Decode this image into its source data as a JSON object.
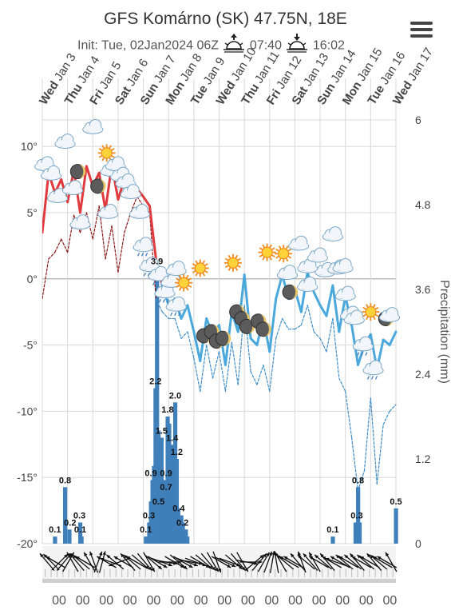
{
  "header": {
    "title": "GFS Komárno (SK) 47.75N, 18E",
    "init": "Init: Tue, 02Jan2024 06Z",
    "sunrise": "07:40",
    "sunset": "16:02",
    "sunrise_icon": "sunrise-icon",
    "sunset_icon": "sunset-icon",
    "menu_icon": "hamburger-menu-icon"
  },
  "chart_data": {
    "type": "line",
    "days": [
      {
        "dow": "Wed",
        "date": "Jan 3"
      },
      {
        "dow": "Thu",
        "date": "Jan 4"
      },
      {
        "dow": "Fri",
        "date": "Jan 5"
      },
      {
        "dow": "Sat",
        "date": "Jan 6"
      },
      {
        "dow": "Sun",
        "date": "Jan 7"
      },
      {
        "dow": "Mon",
        "date": "Jan 8"
      },
      {
        "dow": "Tue",
        "date": "Jan 9"
      },
      {
        "dow": "Wed",
        "date": "Jan 10"
      },
      {
        "dow": "Thu",
        "date": "Jan 11"
      },
      {
        "dow": "Fri",
        "date": "Jan 12"
      },
      {
        "dow": "Sat",
        "date": "Jan 13"
      },
      {
        "dow": "Sun",
        "date": "Jan 14"
      },
      {
        "dow": "Mon",
        "date": "Jan 15"
      },
      {
        "dow": "Tue",
        "date": "Jan 16"
      },
      {
        "dow": "Wed",
        "date": "Jan 17"
      }
    ],
    "temp_axis": {
      "ticks": [
        "10°",
        "5°",
        "0°",
        "-5°",
        "-10°",
        "-15°",
        "-20°"
      ],
      "values": [
        10,
        5,
        0,
        -5,
        -10,
        -15,
        -20
      ],
      "ylim": [
        -20,
        12
      ]
    },
    "precip_axis": {
      "label": "Precipitation (mm)",
      "ticks": [
        "6",
        "4.8",
        "3.6",
        "2.4",
        "1.2",
        "0"
      ],
      "values": [
        6,
        4.8,
        3.6,
        2.4,
        1.2,
        0
      ],
      "ylim": [
        0,
        6
      ]
    },
    "bottom_labels": [
      "00",
      "00",
      "00",
      "00",
      "00",
      "00",
      "00",
      "00",
      "00",
      "00",
      "00",
      "00",
      "00",
      "00",
      "00"
    ],
    "x_range_days": [
      0,
      14
    ],
    "series": [
      {
        "kind": "temperature",
        "x": [
          0.0,
          0.25,
          0.5,
          0.75,
          1.0,
          1.25,
          1.5,
          1.75,
          2.0,
          2.25,
          2.5,
          2.75,
          3.0,
          3.25,
          3.5,
          3.75,
          4.0,
          4.25,
          4.5,
          4.75,
          5.0,
          5.25,
          5.5,
          5.75,
          6.0,
          6.25,
          6.5,
          6.75,
          7.0,
          7.25,
          7.5,
          7.75,
          8.0,
          8.25,
          8.5,
          8.75,
          9.0,
          9.25,
          9.5,
          9.75,
          10.0,
          10.25,
          10.5,
          10.75,
          11.0,
          11.25,
          11.5,
          11.75,
          12.0,
          12.25,
          12.5,
          12.75,
          13.0,
          13.25,
          13.5,
          13.75,
          14.0
        ],
        "y": [
          3.5,
          8.0,
          6.5,
          7.5,
          5.8,
          8.2,
          5.0,
          8.5,
          7.0,
          8.0,
          5.2,
          8.6,
          6.0,
          7.5,
          7.0,
          6.8,
          6.2,
          5.5,
          1.5,
          -0.5,
          -2.0,
          -1.5,
          -3.0,
          -2.0,
          -4.0,
          -6.2,
          -3.0,
          -4.2,
          -3.5,
          -6.5,
          -2.5,
          -4.0,
          0.3,
          -4.5,
          -5.0,
          -3.0,
          -5.5,
          -1.5,
          0.3,
          -1.5,
          -0.8,
          -2.5,
          0.5,
          -1.0,
          -2.0,
          -2.8,
          -0.5,
          -4.0,
          -1.3,
          -3.5,
          -6.5,
          -5.0,
          -4.2,
          -6.8,
          -4.6,
          -5.0,
          -4.0
        ],
        "colors_by_sign": {
          "positive": "#e03a3e",
          "negative": "#4aa8dc"
        }
      },
      {
        "kind": "dewpoint",
        "x": [
          0.0,
          0.25,
          0.5,
          0.75,
          1.0,
          1.25,
          1.5,
          1.75,
          2.0,
          2.25,
          2.5,
          2.75,
          3.0,
          3.25,
          3.5,
          3.75,
          4.0,
          4.25,
          4.5,
          4.75,
          5.0,
          5.25,
          5.5,
          5.75,
          6.0,
          6.25,
          6.5,
          6.75,
          7.0,
          7.25,
          7.5,
          7.75,
          8.0,
          8.25,
          8.5,
          8.75,
          9.0,
          9.25,
          9.5,
          9.75,
          10.0,
          10.25,
          10.5,
          10.75,
          11.0,
          11.25,
          11.5,
          11.75,
          12.0,
          12.25,
          12.5,
          12.75,
          13.0,
          13.25,
          13.5,
          13.75,
          14.0
        ],
        "y": [
          -1.5,
          1.5,
          2.0,
          3.0,
          2.0,
          4.8,
          3.5,
          5.0,
          3.0,
          5.5,
          1.5,
          4.0,
          0.5,
          3.5,
          5.0,
          6.2,
          5.5,
          5.0,
          -1.5,
          -2.5,
          -3.0,
          -3.0,
          -4.5,
          -4.0,
          -6.0,
          -8.5,
          -5.0,
          -7.5,
          -5.5,
          -8.5,
          -4.8,
          -8.0,
          -2.0,
          -7.0,
          -8.0,
          -6.5,
          -8.5,
          -4.5,
          -3.0,
          -3.8,
          -3.8,
          -3.5,
          -2.0,
          -4.0,
          -4.5,
          -5.5,
          -3.0,
          -7.5,
          -8.5,
          -12.0,
          -16.0,
          -14.5,
          -9.0,
          -15.5,
          -11.0,
          -10.0,
          -9.5
        ],
        "colors_by_sign": {
          "positive": "#8b1a1a",
          "negative": "#3f8ec9"
        }
      },
      {
        "kind": "precipitation",
        "x": [
          0.5,
          0.9,
          1.07,
          1.5,
          1.55,
          4.1,
          4.17,
          4.23,
          4.3,
          4.36,
          4.42,
          4.48,
          4.54,
          4.6,
          4.66,
          4.72,
          4.78,
          4.84,
          4.9,
          4.96,
          5.02,
          5.08,
          5.14,
          5.2,
          5.26,
          5.32,
          5.38,
          5.44,
          5.5,
          5.56,
          5.62,
          5.68,
          5.74,
          11.5,
          12.4,
          12.5,
          12.56,
          14.0
        ],
        "y": [
          0.1,
          0.8,
          0.2,
          0.3,
          0.1,
          0.1,
          0.1,
          0.3,
          0.6,
          0.9,
          1.1,
          2.2,
          3.9,
          1.6,
          1.3,
          1.5,
          0.5,
          0.9,
          0.7,
          1.8,
          1.7,
          0.9,
          1.4,
          1.3,
          2.0,
          1.2,
          0.5,
          0.4,
          0.4,
          0.3,
          0.2,
          0.2,
          0.1,
          0.1,
          0.3,
          0.8,
          0.3,
          0.5
        ]
      }
    ],
    "precip_labels": [
      {
        "x": 0.5,
        "y": 0.1,
        "text": "0.1"
      },
      {
        "x": 0.9,
        "y": 0.8,
        "text": "0.8"
      },
      {
        "x": 1.1,
        "y": 0.2,
        "text": "0.2"
      },
      {
        "x": 1.47,
        "y": 0.3,
        "text": "0.3"
      },
      {
        "x": 1.5,
        "y": 0.1,
        "text": "0.1"
      },
      {
        "x": 4.1,
        "y": 0.1,
        "text": "0.1"
      },
      {
        "x": 4.22,
        "y": 0.3,
        "text": "0.3"
      },
      {
        "x": 4.3,
        "y": 0.9,
        "text": "0.9"
      },
      {
        "x": 4.48,
        "y": 2.2,
        "text": "2.2"
      },
      {
        "x": 4.54,
        "y": 3.9,
        "text": "3.9"
      },
      {
        "x": 4.6,
        "y": 0.5,
        "text": "0.5"
      },
      {
        "x": 4.72,
        "y": 1.5,
        "text": "1.5"
      },
      {
        "x": 4.9,
        "y": 0.7,
        "text": "0.7"
      },
      {
        "x": 4.9,
        "y": 0.9,
        "text": "0.9"
      },
      {
        "x": 4.96,
        "y": 1.8,
        "text": "1.8"
      },
      {
        "x": 5.14,
        "y": 1.4,
        "text": "1.4"
      },
      {
        "x": 5.26,
        "y": 2.0,
        "text": "2.0"
      },
      {
        "x": 5.32,
        "y": 1.2,
        "text": "1.2"
      },
      {
        "x": 5.4,
        "y": 0.4,
        "text": "0.4"
      },
      {
        "x": 5.55,
        "y": 0.2,
        "text": "0.2"
      },
      {
        "x": 11.5,
        "y": 0.1,
        "text": "0.1"
      },
      {
        "x": 12.45,
        "y": 0.3,
        "text": "0.3"
      },
      {
        "x": 12.5,
        "y": 0.8,
        "text": "0.8"
      },
      {
        "x": 14.0,
        "y": 0.5,
        "text": "0.5"
      }
    ],
    "weather_icons": [
      {
        "x": 0.1,
        "temp": 8.6,
        "type": "cloud"
      },
      {
        "x": 0.35,
        "temp": 7.9,
        "type": "cloud"
      },
      {
        "x": 0.6,
        "temp": 6.2,
        "type": "cloud"
      },
      {
        "x": 0.9,
        "temp": 10.3,
        "type": "cloud"
      },
      {
        "x": 1.4,
        "temp": 8.1,
        "type": "moon"
      },
      {
        "x": 1.2,
        "temp": 6.8,
        "type": "cloud"
      },
      {
        "x": 1.5,
        "temp": 4.2,
        "type": "cloud"
      },
      {
        "x": 2.0,
        "temp": 11.4,
        "type": "cloud"
      },
      {
        "x": 2.2,
        "temp": 7.0,
        "type": "moon"
      },
      {
        "x": 2.55,
        "temp": 9.5,
        "type": "sun"
      },
      {
        "x": 2.7,
        "temp": 8.2,
        "type": "cloud"
      },
      {
        "x": 2.9,
        "temp": 8.6,
        "type": "cloud"
      },
      {
        "x": 3.1,
        "temp": 7.8,
        "type": "cloud"
      },
      {
        "x": 3.3,
        "temp": 7.3,
        "type": "cloud"
      },
      {
        "x": 3.5,
        "temp": 6.5,
        "type": "cloud"
      },
      {
        "x": 2.6,
        "temp": 5.0,
        "type": "cloud"
      },
      {
        "x": 3.85,
        "temp": 5.0,
        "type": "cloud"
      },
      {
        "x": 4.0,
        "temp": 2.5,
        "type": "rain"
      },
      {
        "x": 4.25,
        "temp": 1.0,
        "type": "rain"
      },
      {
        "x": 4.6,
        "temp": 0.3,
        "type": "rain"
      },
      {
        "x": 4.85,
        "temp": -1.0,
        "type": "rain"
      },
      {
        "x": 5.1,
        "temp": -0.2,
        "type": "cloud"
      },
      {
        "x": 5.3,
        "temp": 0.7,
        "type": "cloud"
      },
      {
        "x": 5.3,
        "temp": -2.0,
        "type": "rain"
      },
      {
        "x": 5.6,
        "temp": -0.3,
        "type": "sun"
      },
      {
        "x": 6.25,
        "temp": 0.8,
        "type": "sun"
      },
      {
        "x": 6.4,
        "temp": -4.3,
        "type": "moon"
      },
      {
        "x": 6.7,
        "temp": -4.0,
        "type": "moon"
      },
      {
        "x": 6.9,
        "temp": -4.7,
        "type": "moon"
      },
      {
        "x": 7.15,
        "temp": -4.5,
        "type": "moon"
      },
      {
        "x": 7.55,
        "temp": 1.2,
        "type": "sun"
      },
      {
        "x": 7.7,
        "temp": -2.5,
        "type": "moon"
      },
      {
        "x": 7.9,
        "temp": -3.0,
        "type": "moon"
      },
      {
        "x": 8.1,
        "temp": -3.6,
        "type": "moon"
      },
      {
        "x": 8.55,
        "temp": -3.2,
        "type": "moon"
      },
      {
        "x": 8.75,
        "temp": -3.8,
        "type": "moon"
      },
      {
        "x": 8.9,
        "temp": 2.0,
        "type": "sun"
      },
      {
        "x": 9.55,
        "temp": 1.9,
        "type": "sun"
      },
      {
        "x": 9.7,
        "temp": 0.4,
        "type": "cloud"
      },
      {
        "x": 9.8,
        "temp": -1.0,
        "type": "moon"
      },
      {
        "x": 10.15,
        "temp": 2.6,
        "type": "cloud"
      },
      {
        "x": 10.5,
        "temp": 0.9,
        "type": "cloud"
      },
      {
        "x": 10.5,
        "temp": -0.5,
        "type": "cloud"
      },
      {
        "x": 10.9,
        "temp": 1.7,
        "type": "cloud"
      },
      {
        "x": 11.2,
        "temp": 0.6,
        "type": "cloud"
      },
      {
        "x": 11.5,
        "temp": 3.3,
        "type": "cloud"
      },
      {
        "x": 11.7,
        "temp": 0.8,
        "type": "cloud"
      },
      {
        "x": 12.0,
        "temp": -1.2,
        "type": "cloud"
      },
      {
        "x": 11.9,
        "temp": 0.9,
        "type": "cloud"
      },
      {
        "x": 12.2,
        "temp": -2.7,
        "type": "cloud"
      },
      {
        "x": 12.35,
        "temp": -3.0,
        "type": "cloud"
      },
      {
        "x": 12.7,
        "temp": -5.0,
        "type": "rain"
      },
      {
        "x": 13.0,
        "temp": -2.5,
        "type": "sun"
      },
      {
        "x": 13.1,
        "temp": -6.8,
        "type": "rain"
      },
      {
        "x": 13.6,
        "temp": -3.0,
        "type": "moon"
      },
      {
        "x": 13.75,
        "temp": -2.8,
        "type": "cloud"
      }
    ],
    "wind_directions_deg": [
      320,
      315,
      300,
      45,
      40,
      30,
      330,
      320,
      310,
      300,
      330,
      340,
      20,
      15,
      300,
      290,
      310,
      250,
      300,
      320,
      310,
      300,
      130,
      140,
      150,
      130,
      120,
      110,
      100,
      90,
      120,
      130,
      120,
      110,
      100,
      110,
      120,
      130,
      140,
      150,
      160,
      120,
      115,
      110,
      130,
      140,
      150,
      100,
      90,
      50,
      40,
      30,
      20,
      10,
      350,
      330,
      310,
      300,
      300,
      320,
      340,
      310,
      320,
      330,
      300,
      310,
      320,
      300,
      290,
      300,
      310,
      300,
      310,
      320,
      300,
      310,
      300,
      320,
      310,
      300,
      300,
      330
    ],
    "grid": true,
    "colors": {
      "grid": "#d8d8d8",
      "bar": "#3f7fba",
      "zero_line": "#bbbbbb",
      "axis_text": "#444444"
    }
  }
}
